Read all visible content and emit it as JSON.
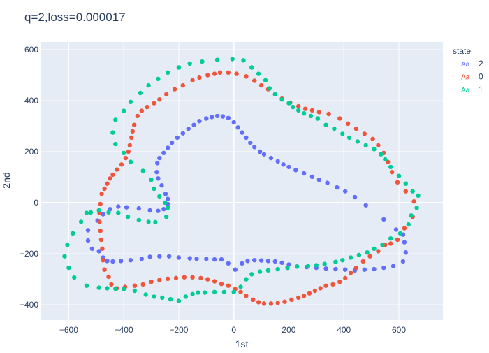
{
  "chart_data": {
    "type": "scatter",
    "title": "q=2,loss=0.000017",
    "xlabel": "1st",
    "ylabel": "2nd",
    "xlim": [
      -700,
      760
    ],
    "ylim": [
      -460,
      630
    ],
    "xticks": [
      -600,
      -400,
      -200,
      0,
      200,
      400,
      600
    ],
    "yticks": [
      -400,
      -200,
      0,
      200,
      400,
      600
    ],
    "grid": true,
    "legend_title": "state",
    "legend_position": "right",
    "series": [
      {
        "name": "2",
        "color": "#636efa",
        "points": [
          [
            -60,
            340
          ],
          [
            -40,
            338
          ],
          [
            -20,
            332
          ],
          [
            0,
            315
          ],
          [
            15,
            295
          ],
          [
            30,
            275
          ],
          [
            45,
            255
          ],
          [
            60,
            235
          ],
          [
            75,
            218
          ],
          [
            95,
            200
          ],
          [
            110,
            190
          ],
          [
            135,
            175
          ],
          [
            160,
            162
          ],
          [
            180,
            150
          ],
          [
            200,
            140
          ],
          [
            225,
            128
          ],
          [
            255,
            115
          ],
          [
            285,
            102
          ],
          [
            310,
            90
          ],
          [
            340,
            78
          ],
          [
            375,
            60
          ],
          [
            405,
            45
          ],
          [
            440,
            22
          ],
          [
            480,
            -10
          ],
          [
            545,
            -65
          ],
          [
            590,
            -105
          ],
          [
            615,
            -125
          ],
          [
            620,
            -155
          ],
          [
            625,
            -195
          ],
          [
            615,
            -230
          ],
          [
            580,
            -248
          ],
          [
            545,
            -255
          ],
          [
            510,
            -260
          ],
          [
            475,
            -262
          ],
          [
            440,
            -265
          ],
          [
            405,
            -262
          ],
          [
            370,
            -260
          ],
          [
            335,
            -258
          ],
          [
            300,
            -255
          ],
          [
            265,
            -252
          ],
          [
            230,
            -250
          ],
          [
            200,
            -242
          ],
          [
            175,
            -235
          ],
          [
            150,
            -230
          ],
          [
            125,
            -228
          ],
          [
            100,
            -226
          ],
          [
            75,
            -225
          ],
          [
            50,
            -228
          ],
          [
            30,
            -238
          ],
          [
            5,
            -262
          ],
          [
            -20,
            -238
          ],
          [
            -45,
            -222
          ],
          [
            -70,
            -222
          ],
          [
            -100,
            -220
          ],
          [
            -135,
            -220
          ],
          [
            -160,
            -218
          ],
          [
            -200,
            -215
          ],
          [
            -235,
            -210
          ],
          [
            -270,
            -210
          ],
          [
            -305,
            -212
          ],
          [
            -335,
            -220
          ],
          [
            -375,
            -225
          ],
          [
            -410,
            -228
          ],
          [
            -440,
            -230
          ],
          [
            -460,
            -228
          ],
          [
            -475,
            -215
          ],
          [
            -490,
            -190
          ],
          [
            -515,
            -180
          ],
          [
            -530,
            -148
          ],
          [
            -530,
            -108
          ],
          [
            -495,
            -70
          ],
          [
            -475,
            -45
          ],
          [
            -450,
            -25
          ],
          [
            -420,
            -15
          ],
          [
            -390,
            -18
          ],
          [
            -345,
            -22
          ],
          [
            -305,
            -30
          ],
          [
            -275,
            -32
          ],
          [
            -255,
            -25
          ],
          [
            -240,
            -5
          ],
          [
            -240,
            15
          ],
          [
            -248,
            35
          ],
          [
            -262,
            68
          ],
          [
            -275,
            95
          ],
          [
            -280,
            120
          ],
          [
            -278,
            155
          ],
          [
            -270,
            175
          ],
          [
            -255,
            195
          ],
          [
            -240,
            215
          ],
          [
            -225,
            235
          ],
          [
            -205,
            255
          ],
          [
            -185,
            272
          ],
          [
            -165,
            290
          ],
          [
            -145,
            305
          ],
          [
            -125,
            320
          ],
          [
            -100,
            330
          ],
          [
            -80,
            336
          ]
        ]
      },
      {
        "name": "0",
        "color": "#ef553b",
        "points": [
          [
            -50,
            510
          ],
          [
            -20,
            510
          ],
          [
            10,
            505
          ],
          [
            45,
            495
          ],
          [
            75,
            478
          ],
          [
            100,
            460
          ],
          [
            125,
            445
          ],
          [
            150,
            425
          ],
          [
            175,
            408
          ],
          [
            205,
            392
          ],
          [
            235,
            378
          ],
          [
            260,
            368
          ],
          [
            285,
            362
          ],
          [
            310,
            355
          ],
          [
            345,
            348
          ],
          [
            385,
            330
          ],
          [
            415,
            310
          ],
          [
            445,
            290
          ],
          [
            475,
            270
          ],
          [
            505,
            250
          ],
          [
            525,
            225
          ],
          [
            545,
            195
          ],
          [
            560,
            160
          ],
          [
            575,
            120
          ],
          [
            595,
            80
          ],
          [
            625,
            45
          ],
          [
            655,
            5
          ],
          [
            650,
            -55
          ],
          [
            620,
            -100
          ],
          [
            595,
            -145
          ],
          [
            570,
            -160
          ],
          [
            550,
            -165
          ],
          [
            525,
            -190
          ],
          [
            495,
            -210
          ],
          [
            470,
            -230
          ],
          [
            445,
            -255
          ],
          [
            425,
            -275
          ],
          [
            405,
            -295
          ],
          [
            385,
            -310
          ],
          [
            360,
            -320
          ],
          [
            335,
            -325
          ],
          [
            315,
            -335
          ],
          [
            295,
            -345
          ],
          [
            275,
            -355
          ],
          [
            255,
            -365
          ],
          [
            235,
            -372
          ],
          [
            210,
            -380
          ],
          [
            185,
            -388
          ],
          [
            160,
            -393
          ],
          [
            135,
            -395
          ],
          [
            110,
            -395
          ],
          [
            90,
            -390
          ],
          [
            70,
            -380
          ],
          [
            45,
            -365
          ],
          [
            25,
            -350
          ],
          [
            5,
            -338
          ],
          [
            -20,
            -325
          ],
          [
            -45,
            -318
          ],
          [
            -70,
            -308
          ],
          [
            -95,
            -300
          ],
          [
            -120,
            -295
          ],
          [
            -150,
            -292
          ],
          [
            -180,
            -292
          ],
          [
            -210,
            -295
          ],
          [
            -240,
            -298
          ],
          [
            -270,
            -303
          ],
          [
            -300,
            -310
          ],
          [
            -330,
            -320
          ],
          [
            -360,
            -325
          ],
          [
            -395,
            -330
          ],
          [
            -425,
            -335
          ],
          [
            -445,
            -320
          ],
          [
            -455,
            -290
          ],
          [
            -470,
            -262
          ],
          [
            -475,
            -225
          ],
          [
            -478,
            -180
          ],
          [
            -482,
            -145
          ],
          [
            -485,
            -110
          ],
          [
            -488,
            -75
          ],
          [
            -488,
            -40
          ],
          [
            -485,
            -5
          ],
          [
            -480,
            35
          ],
          [
            -470,
            55
          ],
          [
            -460,
            75
          ],
          [
            -450,
            95
          ],
          [
            -440,
            110
          ],
          [
            -425,
            130
          ],
          [
            -408,
            150
          ],
          [
            -393,
            175
          ],
          [
            -383,
            200
          ],
          [
            -378,
            225
          ],
          [
            -372,
            255
          ],
          [
            -368,
            280
          ],
          [
            -362,
            305
          ],
          [
            -350,
            340
          ],
          [
            -335,
            360
          ],
          [
            -315,
            375
          ],
          [
            -290,
            390
          ],
          [
            -270,
            405
          ],
          [
            -245,
            425
          ],
          [
            -215,
            445
          ],
          [
            -185,
            460
          ],
          [
            -150,
            480
          ],
          [
            -125,
            490
          ],
          [
            -95,
            500
          ],
          [
            -70,
            505
          ]
        ]
      },
      {
        "name": "1",
        "color": "#00cc96",
        "points": [
          [
            -60,
            560
          ],
          [
            -5,
            563
          ],
          [
            35,
            558
          ],
          [
            65,
            530
          ],
          [
            90,
            505
          ],
          [
            115,
            480
          ],
          [
            130,
            448
          ],
          [
            150,
            425
          ],
          [
            175,
            405
          ],
          [
            200,
            390
          ],
          [
            215,
            375
          ],
          [
            235,
            362
          ],
          [
            255,
            350
          ],
          [
            280,
            340
          ],
          [
            305,
            330
          ],
          [
            335,
            305
          ],
          [
            365,
            290
          ],
          [
            395,
            270
          ],
          [
            420,
            255
          ],
          [
            450,
            240
          ],
          [
            480,
            225
          ],
          [
            510,
            210
          ],
          [
            535,
            190
          ],
          [
            550,
            170
          ],
          [
            570,
            140
          ],
          [
            600,
            105
          ],
          [
            625,
            75
          ],
          [
            650,
            45
          ],
          [
            670,
            28
          ],
          [
            665,
            -20
          ],
          [
            645,
            -50
          ],
          [
            635,
            -85
          ],
          [
            605,
            -120
          ],
          [
            570,
            -140
          ],
          [
            540,
            -165
          ],
          [
            510,
            -180
          ],
          [
            485,
            -195
          ],
          [
            455,
            -205
          ],
          [
            425,
            -215
          ],
          [
            395,
            -225
          ],
          [
            370,
            -232
          ],
          [
            330,
            -240
          ],
          [
            300,
            -245
          ],
          [
            270,
            -248
          ],
          [
            230,
            -250
          ],
          [
            195,
            -255
          ],
          [
            160,
            -260
          ],
          [
            125,
            -265
          ],
          [
            95,
            -270
          ],
          [
            65,
            -280
          ],
          [
            45,
            -300
          ],
          [
            25,
            -330
          ],
          [
            0,
            -350
          ],
          [
            -35,
            -350
          ],
          [
            -70,
            -350
          ],
          [
            -105,
            -352
          ],
          [
            -130,
            -352
          ],
          [
            -150,
            -358
          ],
          [
            -175,
            -368
          ],
          [
            -200,
            -385
          ],
          [
            -230,
            -378
          ],
          [
            -260,
            -372
          ],
          [
            -290,
            -368
          ],
          [
            -320,
            -360
          ],
          [
            -360,
            -345
          ],
          [
            -400,
            -338
          ],
          [
            -430,
            -337
          ],
          [
            -460,
            -335
          ],
          [
            -490,
            -333
          ],
          [
            -535,
            -325
          ],
          [
            -580,
            -293
          ],
          [
            -600,
            -255
          ],
          [
            -615,
            -210
          ],
          [
            -605,
            -165
          ],
          [
            -585,
            -120
          ],
          [
            -555,
            -75
          ],
          [
            -535,
            -40
          ],
          [
            -520,
            -38
          ],
          [
            -490,
            -30
          ],
          [
            -455,
            -38
          ],
          [
            -420,
            -40
          ],
          [
            -385,
            -55
          ],
          [
            -345,
            -68
          ],
          [
            -310,
            -75
          ],
          [
            -285,
            -76
          ],
          [
            -245,
            -55
          ],
          [
            -240,
            -20
          ],
          [
            -250,
            0
          ],
          [
            -270,
            25
          ],
          [
            -290,
            55
          ],
          [
            -300,
            90
          ],
          [
            -330,
            125
          ],
          [
            -375,
            160
          ],
          [
            -400,
            195
          ],
          [
            -430,
            230
          ],
          [
            -440,
            275
          ],
          [
            -430,
            325
          ],
          [
            -400,
            360
          ],
          [
            -375,
            395
          ],
          [
            -340,
            430
          ],
          [
            -310,
            460
          ],
          [
            -275,
            485
          ],
          [
            -240,
            510
          ],
          [
            -200,
            530
          ],
          [
            -160,
            545
          ],
          [
            -115,
            553
          ]
        ]
      }
    ]
  }
}
